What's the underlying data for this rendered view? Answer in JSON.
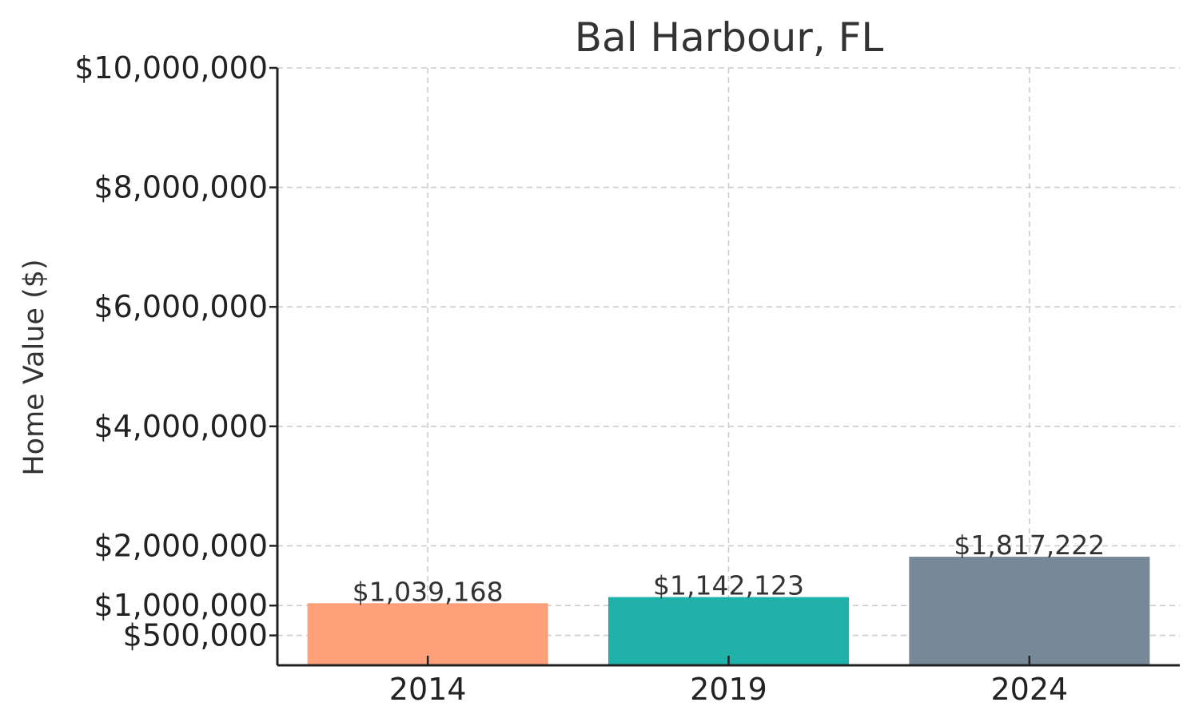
{
  "chart_data": {
    "type": "bar",
    "title": "Bal Harbour, FL",
    "xlabel": "",
    "ylabel": "Home Value ($)",
    "categories": [
      "2014",
      "2019",
      "2024"
    ],
    "values": [
      1039168,
      1142123,
      1817222
    ],
    "data_labels": [
      "$1,039,168",
      "$1,142,123",
      "$1,817,222"
    ],
    "colors": [
      "#FFA07A",
      "#20B2AA",
      "#778899"
    ],
    "ylim": [
      0,
      10000000
    ],
    "yticks": [
      500000,
      1000000,
      2000000,
      4000000,
      6000000,
      8000000,
      10000000
    ],
    "ytick_labels": [
      "$500,000",
      "$1,000,000",
      "$2,000,000",
      "$4,000,000",
      "$6,000,000",
      "$8,000,000",
      "$10,000,000"
    ],
    "grid": true,
    "legend": "none"
  }
}
